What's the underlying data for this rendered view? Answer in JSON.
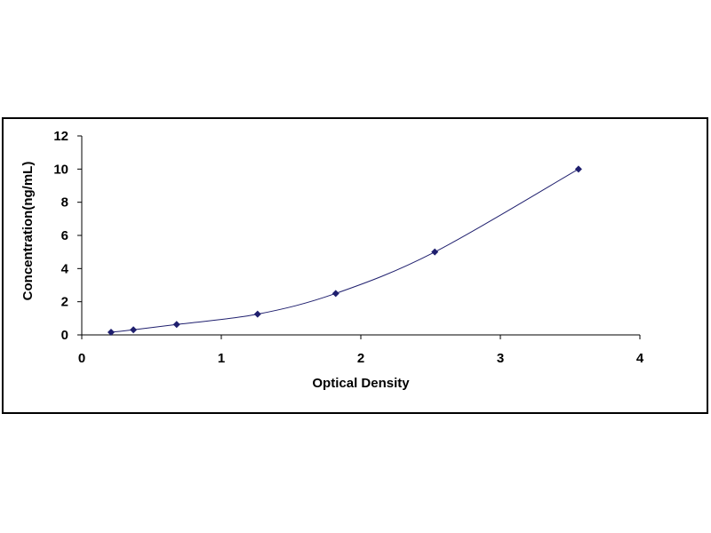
{
  "chart_data": {
    "type": "scatter",
    "title": "",
    "xlabel": "Optical Density",
    "ylabel": "Concentration(ng/mL)",
    "xlim": [
      0,
      4
    ],
    "ylim": [
      0,
      12
    ],
    "x_ticks": [
      "0",
      "1",
      "2",
      "3",
      "4"
    ],
    "y_ticks": [
      "0",
      "2",
      "4",
      "6",
      "8",
      "10",
      "12"
    ],
    "grid": false,
    "legend": "none",
    "series": [
      {
        "x": [
          0.21,
          0.37,
          0.68,
          1.26,
          1.82,
          2.53,
          3.56
        ],
        "y": [
          0.16,
          0.31,
          0.63,
          1.25,
          2.5,
          5,
          10
        ],
        "marker": "diamond",
        "color": "#1f1f6e",
        "fit_curve": true
      }
    ]
  }
}
